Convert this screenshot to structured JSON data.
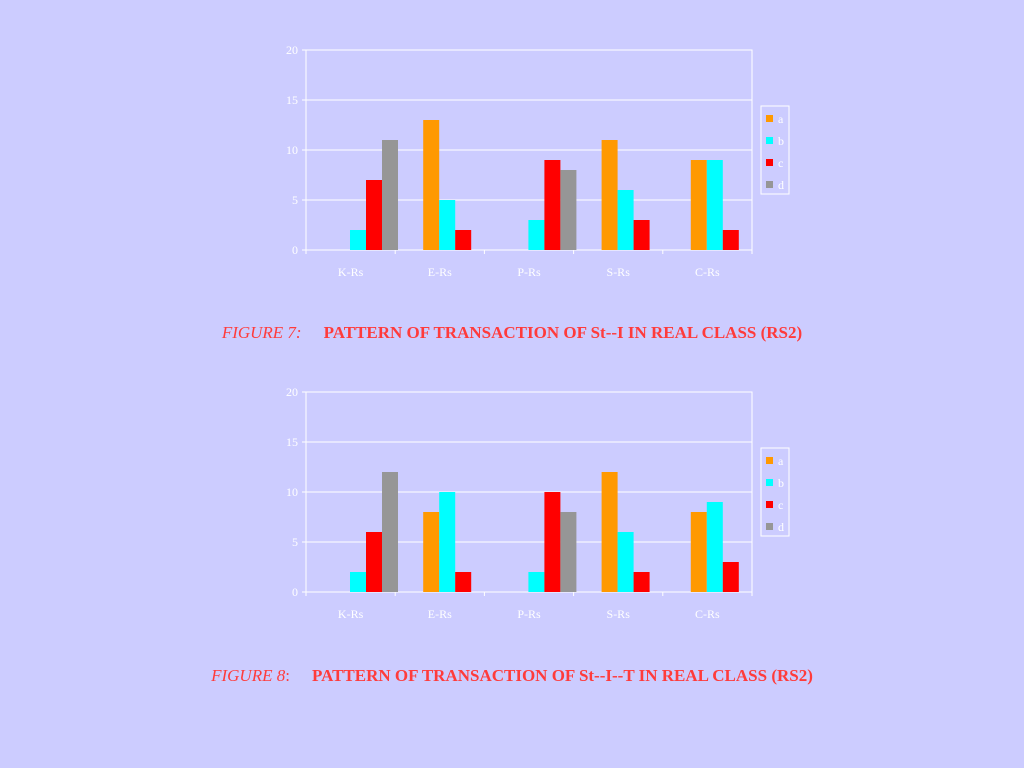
{
  "colors": {
    "background": "#ccccff",
    "caption": "#ff3b3b",
    "axis_text": "#ffffff",
    "grid": "#ffffff"
  },
  "captions": [
    {
      "label": "FIGURE 7:",
      "suffix": "",
      "title": "PATTERN OF TRANSACTION OF St--I IN REAL CLASS (RS2)"
    },
    {
      "label": "FIGURE 8",
      "suffix": ":",
      "title": "PATTERN OF TRANSACTION OF St--I--T IN REAL CLASS (RS2)"
    }
  ],
  "chart_data": [
    {
      "type": "bar",
      "categories": [
        "K-Rs",
        "E-Rs",
        "P-Rs",
        "S-Rs",
        "C-Rs"
      ],
      "ylim": [
        0,
        20
      ],
      "yticks": [
        "0",
        "5",
        "10",
        "15",
        "20"
      ],
      "grid": true,
      "legend_position": "right",
      "series": [
        {
          "name": "a",
          "color": "#ff9900",
          "values": [
            0,
            13,
            0,
            11,
            9
          ]
        },
        {
          "name": "b",
          "color": "#00ffff",
          "values": [
            2,
            5,
            3,
            6,
            9
          ]
        },
        {
          "name": "c",
          "color": "#ff0000",
          "values": [
            7,
            2,
            9,
            3,
            2
          ]
        },
        {
          "name": "d",
          "color": "#969696",
          "values": [
            11,
            0,
            8,
            0,
            0
          ]
        }
      ]
    },
    {
      "type": "bar",
      "categories": [
        "K-Rs",
        "E-Rs",
        "P-Rs",
        "S-Rs",
        "C-Rs"
      ],
      "ylim": [
        0,
        20
      ],
      "yticks": [
        "0",
        "5",
        "10",
        "15",
        "20"
      ],
      "grid": true,
      "legend_position": "right",
      "series": [
        {
          "name": "a",
          "color": "#ff9900",
          "values": [
            0,
            8,
            0,
            12,
            8
          ]
        },
        {
          "name": "b",
          "color": "#00ffff",
          "values": [
            2,
            10,
            2,
            6,
            9
          ]
        },
        {
          "name": "c",
          "color": "#ff0000",
          "values": [
            6,
            2,
            10,
            2,
            3
          ]
        },
        {
          "name": "d",
          "color": "#969696",
          "values": [
            12,
            0,
            8,
            0,
            0
          ]
        }
      ]
    }
  ]
}
